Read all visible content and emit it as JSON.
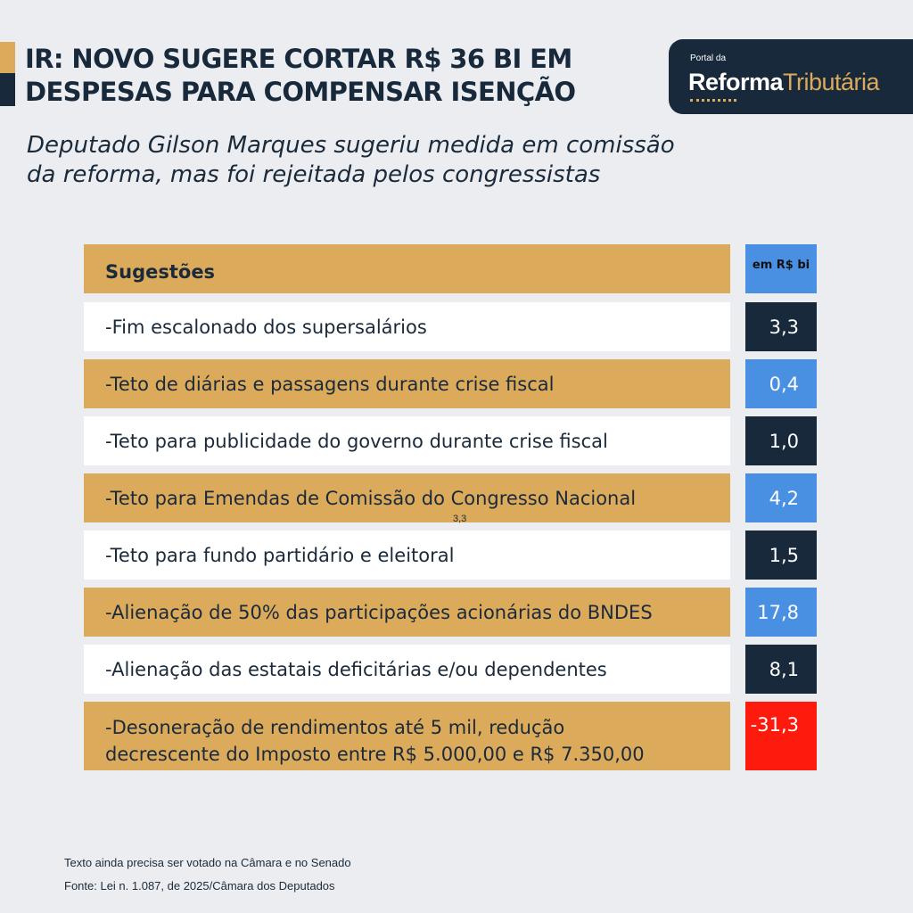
{
  "header": {
    "title_lines": [
      "IR: NOVO SUGERE CORTAR R$ 36 BI EM",
      "DESPESAS PARA COMPENSAR ISENÇÃO"
    ],
    "subtitle_lines": [
      "Deputado Gilson Marques sugeriu medida em comissão",
      "da reforma, mas foi rejeitada pelos congressistas"
    ]
  },
  "logo": {
    "small": "Portal da",
    "bold": "Reforma",
    "light": "Tributária"
  },
  "colors": {
    "gold": "#dcaa5b",
    "navy": "#17293a",
    "blue": "#4a90e2",
    "red": "#ff1a0e",
    "white": "#ffffff"
  },
  "chart_data": {
    "type": "table",
    "columns": [
      "Sugestões",
      "em R$ bi"
    ],
    "rows": [
      {
        "label": "-Fim escalonado dos supersalários",
        "value": "3,3"
      },
      {
        "label": "-Teto de diárias e passagens durante crise fiscal",
        "value": "0,4"
      },
      {
        "label": "-Teto para publicidade do governo durante crise fiscal",
        "value": "1,0"
      },
      {
        "label": "-Teto para Emendas de Comissão do Congresso Nacional",
        "value": "4,2"
      },
      {
        "label": "-Teto para fundo partidário e eleitoral",
        "value": "1,5"
      },
      {
        "label": "-Alienação de 50% das participações acionárias do BNDES",
        "value": "17,8"
      },
      {
        "label": "-Alienação das estatais deficitárias e/ou dependentes",
        "value": "8,1"
      },
      {
        "label_lines": [
          "-Desoneração de rendimentos até 5 mil, redução",
          "decrescente do Imposto entre R$ 5.000,00 e R$ 7.350,00"
        ],
        "value": "-31,3"
      }
    ],
    "stray_label": "3,3"
  },
  "footer": {
    "line1": "Texto ainda precisa ser votado na Câmara e no Senado",
    "line2": "Fonte: Lei n. 1.087, de 2025/Câmara dos Deputados"
  }
}
